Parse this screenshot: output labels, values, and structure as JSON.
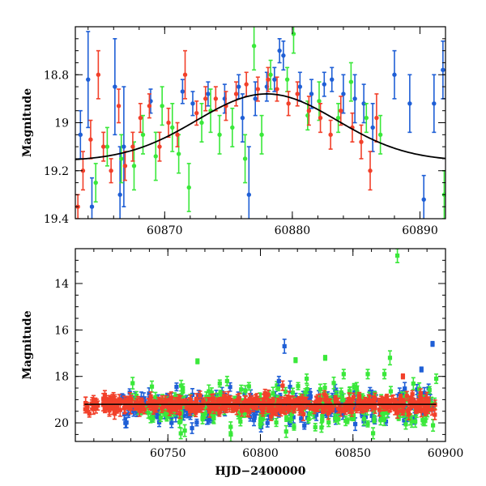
{
  "chart_data": [
    {
      "type": "scatter",
      "title": "",
      "xlabel": "",
      "ylabel": "Magnitude",
      "xlim": [
        60863,
        60892
      ],
      "ylim": [
        19.4,
        18.6
      ],
      "y_inverted": true,
      "xticks": [
        60870,
        60880,
        60890
      ],
      "xtick_labels": [
        "60870",
        "60880",
        "60890"
      ],
      "yticks": [
        18.8,
        19.0,
        19.2,
        19.4
      ],
      "ytick_labels": [
        "18.8",
        "19",
        "19.2",
        "19.4"
      ],
      "grid": false,
      "legend": "none",
      "model_curve": {
        "name": "",
        "type": "gaussian",
        "center_x": 60878,
        "baseline": 19.16,
        "peak": 18.88,
        "sigma_days": 5.5,
        "color": "#000000"
      },
      "series": [
        {
          "color": "#1f5fd6",
          "points": [
            {
              "x": 60863.4,
              "y": 19.05,
              "err": 0.1
            },
            {
              "x": 60864.0,
              "y": 18.82,
              "err": 0.2
            },
            {
              "x": 60864.3,
              "y": 19.35,
              "err": 0.12
            },
            {
              "x": 60866.1,
              "y": 18.85,
              "err": 0.2
            },
            {
              "x": 60866.5,
              "y": 19.3,
              "err": 0.2
            },
            {
              "x": 60866.8,
              "y": 19.1,
              "err": 0.25
            },
            {
              "x": 60868.9,
              "y": 18.91,
              "err": 0.05
            },
            {
              "x": 60871.4,
              "y": 18.87,
              "err": 0.05
            },
            {
              "x": 60872.2,
              "y": 18.92,
              "err": 0.05
            },
            {
              "x": 60873.4,
              "y": 18.88,
              "err": 0.05
            },
            {
              "x": 60874.7,
              "y": 18.9,
              "err": 0.06
            },
            {
              "x": 60875.8,
              "y": 18.85,
              "err": 0.05
            },
            {
              "x": 60876.1,
              "y": 18.98,
              "err": 0.1
            },
            {
              "x": 60876.6,
              "y": 19.3,
              "err": 0.2
            },
            {
              "x": 60877.1,
              "y": 18.9,
              "err": 0.07
            },
            {
              "x": 60878.0,
              "y": 18.85,
              "err": 0.06
            },
            {
              "x": 60878.6,
              "y": 18.82,
              "err": 0.05
            },
            {
              "x": 60879.0,
              "y": 18.7,
              "err": 0.05
            },
            {
              "x": 60879.3,
              "y": 18.72,
              "err": 0.06
            },
            {
              "x": 60880.6,
              "y": 18.85,
              "err": 0.06
            },
            {
              "x": 60881.5,
              "y": 18.88,
              "err": 0.06
            },
            {
              "x": 60882.5,
              "y": 18.84,
              "err": 0.05
            },
            {
              "x": 60883.1,
              "y": 18.82,
              "err": 0.05
            },
            {
              "x": 60884.0,
              "y": 18.88,
              "err": 0.08
            },
            {
              "x": 60884.9,
              "y": 18.9,
              "err": 0.1
            },
            {
              "x": 60885.6,
              "y": 18.92,
              "err": 0.08
            },
            {
              "x": 60886.3,
              "y": 19.02,
              "err": 0.1
            },
            {
              "x": 60888.0,
              "y": 18.8,
              "err": 0.1
            },
            {
              "x": 60889.2,
              "y": 18.92,
              "err": 0.12
            },
            {
              "x": 60890.3,
              "y": 19.32,
              "err": 0.1
            },
            {
              "x": 60891.1,
              "y": 18.92,
              "err": 0.12
            },
            {
              "x": 60891.8,
              "y": 18.78,
              "err": 0.12
            }
          ]
        },
        {
          "color": "#3ae83a",
          "points": [
            {
              "x": 60864.6,
              "y": 19.25,
              "err": 0.08
            },
            {
              "x": 60865.5,
              "y": 19.1,
              "err": 0.08
            },
            {
              "x": 60866.6,
              "y": 19.15,
              "err": 0.1
            },
            {
              "x": 60867.6,
              "y": 19.18,
              "err": 0.1
            },
            {
              "x": 60868.3,
              "y": 19.05,
              "err": 0.08
            },
            {
              "x": 60869.3,
              "y": 19.14,
              "err": 0.1
            },
            {
              "x": 60869.8,
              "y": 18.93,
              "err": 0.08
            },
            {
              "x": 60870.6,
              "y": 19.02,
              "err": 0.1
            },
            {
              "x": 60871.1,
              "y": 19.13,
              "err": 0.08
            },
            {
              "x": 60871.9,
              "y": 19.27,
              "err": 0.1
            },
            {
              "x": 60872.9,
              "y": 19.0,
              "err": 0.08
            },
            {
              "x": 60873.6,
              "y": 18.95,
              "err": 0.09
            },
            {
              "x": 60874.3,
              "y": 19.05,
              "err": 0.08
            },
            {
              "x": 60875.3,
              "y": 19.02,
              "err": 0.08
            },
            {
              "x": 60876.3,
              "y": 19.15,
              "err": 0.1
            },
            {
              "x": 60877.0,
              "y": 18.68,
              "err": 0.1
            },
            {
              "x": 60877.6,
              "y": 19.05,
              "err": 0.08
            },
            {
              "x": 60878.3,
              "y": 18.8,
              "err": 0.06
            },
            {
              "x": 60879.6,
              "y": 18.82,
              "err": 0.05
            },
            {
              "x": 60880.1,
              "y": 18.63,
              "err": 0.08
            },
            {
              "x": 60881.2,
              "y": 18.97,
              "err": 0.06
            },
            {
              "x": 60882.1,
              "y": 18.91,
              "err": 0.08
            },
            {
              "x": 60883.6,
              "y": 18.98,
              "err": 0.06
            },
            {
              "x": 60884.6,
              "y": 18.83,
              "err": 0.08
            },
            {
              "x": 60885.8,
              "y": 18.98,
              "err": 0.06
            },
            {
              "x": 60886.9,
              "y": 19.05,
              "err": 0.08
            },
            {
              "x": 60891.9,
              "y": 19.3,
              "err": 0.1
            }
          ]
        },
        {
          "color": "#f2402a",
          "points": [
            {
              "x": 60863.2,
              "y": 19.35,
              "err": 0.05
            },
            {
              "x": 60863.6,
              "y": 19.2,
              "err": 0.08
            },
            {
              "x": 60864.2,
              "y": 19.07,
              "err": 0.08
            },
            {
              "x": 60864.8,
              "y": 18.8,
              "err": 0.1
            },
            {
              "x": 60865.2,
              "y": 19.1,
              "err": 0.06
            },
            {
              "x": 60865.8,
              "y": 19.2,
              "err": 0.05
            },
            {
              "x": 60866.4,
              "y": 18.93,
              "err": 0.07
            },
            {
              "x": 60866.9,
              "y": 19.18,
              "err": 0.06
            },
            {
              "x": 60867.5,
              "y": 19.1,
              "err": 0.06
            },
            {
              "x": 60868.1,
              "y": 18.98,
              "err": 0.06
            },
            {
              "x": 60868.8,
              "y": 18.93,
              "err": 0.05
            },
            {
              "x": 60869.6,
              "y": 19.1,
              "err": 0.06
            },
            {
              "x": 60870.3,
              "y": 19.0,
              "err": 0.06
            },
            {
              "x": 60871.0,
              "y": 19.05,
              "err": 0.05
            },
            {
              "x": 60871.6,
              "y": 18.8,
              "err": 0.1
            },
            {
              "x": 60872.5,
              "y": 18.96,
              "err": 0.05
            },
            {
              "x": 60873.2,
              "y": 18.9,
              "err": 0.05
            },
            {
              "x": 60874.0,
              "y": 18.9,
              "err": 0.05
            },
            {
              "x": 60874.8,
              "y": 18.93,
              "err": 0.06
            },
            {
              "x": 60875.6,
              "y": 18.88,
              "err": 0.05
            },
            {
              "x": 60876.4,
              "y": 18.84,
              "err": 0.05
            },
            {
              "x": 60877.3,
              "y": 18.86,
              "err": 0.05
            },
            {
              "x": 60878.1,
              "y": 18.82,
              "err": 0.05
            },
            {
              "x": 60878.8,
              "y": 18.86,
              "err": 0.05
            },
            {
              "x": 60879.7,
              "y": 18.92,
              "err": 0.05
            },
            {
              "x": 60880.4,
              "y": 18.88,
              "err": 0.05
            },
            {
              "x": 60881.3,
              "y": 18.95,
              "err": 0.06
            },
            {
              "x": 60882.2,
              "y": 18.98,
              "err": 0.06
            },
            {
              "x": 60883.0,
              "y": 19.05,
              "err": 0.06
            },
            {
              "x": 60883.8,
              "y": 18.95,
              "err": 0.06
            },
            {
              "x": 60884.7,
              "y": 19.02,
              "err": 0.06
            },
            {
              "x": 60885.4,
              "y": 19.08,
              "err": 0.07
            },
            {
              "x": 60886.1,
              "y": 19.2,
              "err": 0.08
            },
            {
              "x": 60886.6,
              "y": 18.98,
              "err": 0.1
            }
          ]
        }
      ]
    },
    {
      "type": "scatter",
      "title": "",
      "xlabel": "HJD−2400000",
      "ylabel": "Magnitude",
      "xlim": [
        60700,
        60900
      ],
      "ylim": [
        20.8,
        12.5
      ],
      "y_inverted": true,
      "xticks": [
        60750,
        60800,
        60850,
        60900
      ],
      "xtick_labels": [
        "60750",
        "60800",
        "60850",
        "60900"
      ],
      "yticks": [
        14,
        16,
        18,
        20
      ],
      "ytick_labels": [
        "14",
        "16",
        "18",
        "20"
      ],
      "grid": false,
      "legend": "none",
      "baseline": {
        "x_start": 60705,
        "x_end": 60895,
        "magnitude": 19.2,
        "color": "#000000"
      },
      "outliers": [
        {
          "color": "#3ae83a",
          "x": 60874,
          "y": 12.8,
          "err": 0.3
        },
        {
          "color": "#1f5fd6",
          "x": 60893,
          "y": 16.6,
          "err": 0.1
        },
        {
          "color": "#1f5fd6",
          "x": 60813,
          "y": 16.7,
          "err": 0.3
        },
        {
          "color": "#3ae83a",
          "x": 60870,
          "y": 17.2,
          "err": 0.3
        },
        {
          "color": "#3ae83a",
          "x": 60867,
          "y": 17.9,
          "err": 0.2
        },
        {
          "color": "#3ae83a",
          "x": 60835,
          "y": 17.2,
          "err": 0.1
        },
        {
          "color": "#3ae83a",
          "x": 60766,
          "y": 17.35,
          "err": 0.1
        },
        {
          "color": "#3ae83a",
          "x": 60819,
          "y": 17.3,
          "err": 0.1
        },
        {
          "color": "#1f5fd6",
          "x": 60887,
          "y": 17.7,
          "err": 0.1
        },
        {
          "color": "#3ae83a",
          "x": 60895,
          "y": 18.1,
          "err": 0.2
        },
        {
          "color": "#f2402a",
          "x": 60877,
          "y": 18.0,
          "err": 0.1
        },
        {
          "color": "#3ae83a",
          "x": 60858,
          "y": 17.9,
          "err": 0.2
        },
        {
          "color": "#3ae83a",
          "x": 60845,
          "y": 17.9,
          "err": 0.2
        },
        {
          "color": "#3ae83a",
          "x": 60825,
          "y": 18.1,
          "err": 0.2
        },
        {
          "color": "#3ae83a",
          "x": 60782,
          "y": 18.2,
          "err": 0.2
        },
        {
          "color": "#1f5fd6",
          "x": 60810,
          "y": 18.2,
          "err": 0.2
        },
        {
          "color": "#f2402a",
          "x": 60812,
          "y": 18.4,
          "err": 0.2
        },
        {
          "color": "#3ae83a",
          "x": 60833,
          "y": 20.2,
          "err": 0.2
        },
        {
          "color": "#1f5fd6",
          "x": 60752,
          "y": 20.0,
          "err": 0.2
        },
        {
          "color": "#3ae83a",
          "x": 60784,
          "y": 20.5,
          "err": 0.3
        }
      ],
      "series_bands": [
        {
          "color": "#1f5fd6",
          "x_start": 60725,
          "x_end": 60895,
          "mean": 19.3,
          "scatter": 0.35
        },
        {
          "color": "#3ae83a",
          "x_start": 60728,
          "x_end": 60895,
          "mean": 19.25,
          "scatter": 0.45
        },
        {
          "color": "#f2402a",
          "x_start": 60705,
          "x_end": 60895,
          "mean": 19.22,
          "scatter": 0.18
        }
      ]
    }
  ]
}
